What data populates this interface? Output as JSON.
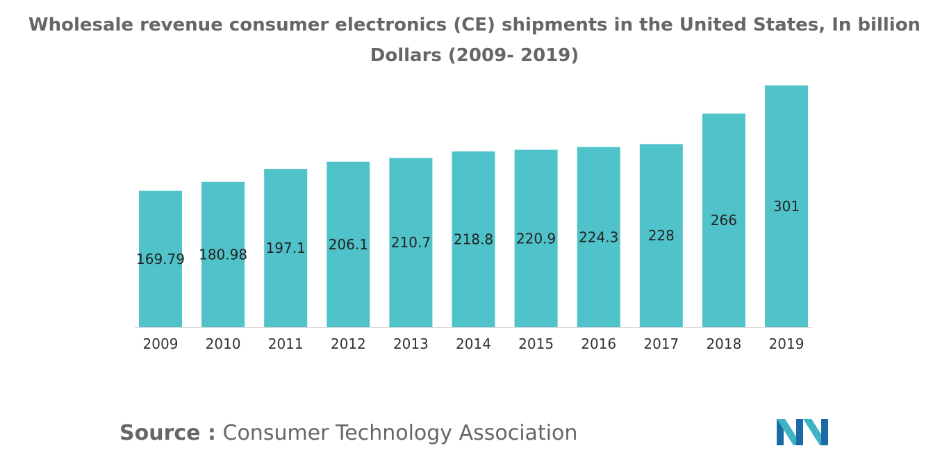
{
  "chart_data": {
    "type": "bar",
    "title_line1": "Wholesale revenue consumer electronics (CE) shipments in the United States, In billion",
    "title_line2": "Dollars (2009- 2019)",
    "categories": [
      "2009",
      "2010",
      "2011",
      "2012",
      "2013",
      "2014",
      "2015",
      "2016",
      "2017",
      "2018",
      "2019"
    ],
    "values": [
      169.79,
      180.98,
      197.1,
      206.1,
      210.7,
      218.8,
      220.9,
      224.3,
      228,
      266,
      301
    ],
    "value_labels": [
      "169.79",
      "180.98",
      "197.1",
      "206.1",
      "210.7",
      "218.8",
      "220.9",
      "224.3",
      "228",
      "266",
      "301"
    ],
    "xlabel": "",
    "ylabel": "",
    "ylim": [
      0,
      301
    ],
    "grid": false,
    "legend": "none",
    "bar_color": "#4FC3C9",
    "label_color": "#222222",
    "tick_color": "#333333"
  },
  "source": {
    "label": "Source :",
    "text": "Consumer Technology Association"
  },
  "logo": {
    "icon": "mordor-intelligence-logo-icon",
    "colors": [
      "#1B6AA5",
      "#3FB3C6"
    ]
  }
}
